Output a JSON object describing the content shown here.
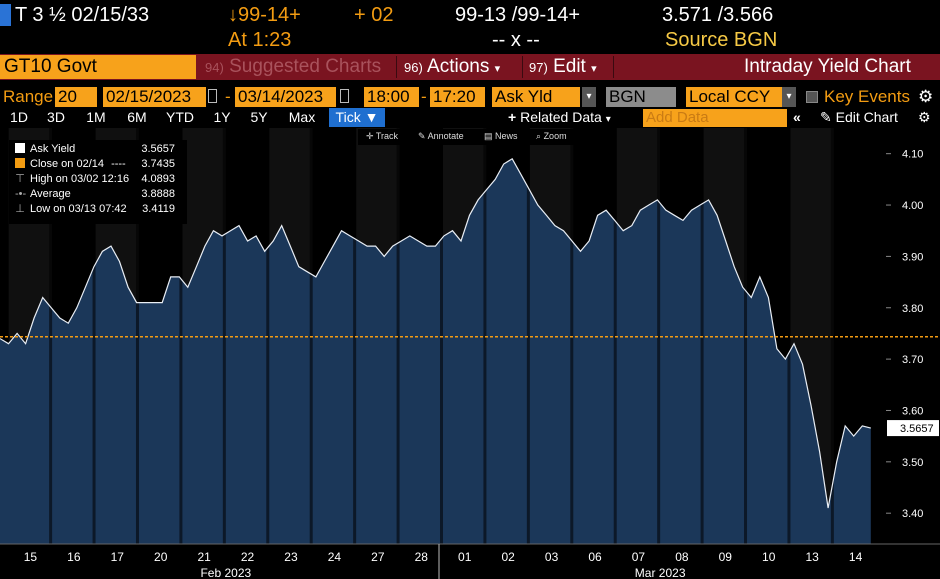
{
  "ticker": {
    "security": "T 3 ½ 02/15/33",
    "price_change": "↓99-14+",
    "net_change": "+ 02",
    "bid_ask": "99-13 /99-14+",
    "yields": "3.571 /3.566",
    "time": "At 1:23",
    "size": "-- x --",
    "source": "Source BGN"
  },
  "command": {
    "input": "GT10 Govt",
    "suggested_num": "94)",
    "suggested_label": "Suggested Charts",
    "actions_num": "96)",
    "actions_label": "Actions",
    "edit_num": "97)",
    "edit_label": "Edit",
    "title": "Intraday Yield Chart"
  },
  "range": {
    "label": "Range",
    "period": "20",
    "start": "02/15/2023",
    "dash": "-",
    "end": "03/14/2023",
    "time_start": "18:00",
    "time_end": "17:20",
    "field": "Ask Yld",
    "source": "BGN",
    "currency": "Local CCY",
    "key_events": "Key Events"
  },
  "toolbar": {
    "periods": [
      "1D",
      "3D",
      "1M",
      "6M",
      "YTD",
      "1Y",
      "5Y",
      "Max"
    ],
    "active": "Tick",
    "related": "Related Data",
    "add_data_placeholder": "Add Data",
    "edit_chart": "Edit Chart",
    "track": "Track",
    "annotate": "Annotate",
    "news": "News",
    "zoom": "Zoom"
  },
  "legend": {
    "ask_label": "Ask Yield",
    "ask_value": "3.5657",
    "close_label": "Close on 02/14",
    "close_dashes": "----",
    "close_value": "3.7435",
    "high_label": "High on 03/02 12:16",
    "high_value": "4.0893",
    "avg_label": "Average",
    "avg_value": "3.8888",
    "low_label": "Low on 03/13 07:42",
    "low_value": "3.4119"
  },
  "colors": {
    "accent": "#f7a21b",
    "series": "#1c3a5e",
    "close_line": "#f39c12",
    "active_tab": "#1f6fd0"
  },
  "chart_data": {
    "type": "area",
    "ylim": [
      3.34,
      4.15
    ],
    "yticks": [
      "4.10",
      "4.00",
      "3.90",
      "3.80",
      "3.70",
      "3.60",
      "3.50",
      "3.40"
    ],
    "ytick_values": [
      4.1,
      4.0,
      3.9,
      3.8,
      3.7,
      3.6,
      3.5,
      3.4
    ],
    "last_value": "3.5657",
    "reference_close": 3.7435,
    "days": [
      "15",
      "16",
      "17",
      "20",
      "21",
      "22",
      "23",
      "24",
      "27",
      "28",
      "01",
      "02",
      "03",
      "06",
      "07",
      "08",
      "09",
      "10",
      "13",
      "14"
    ],
    "month_labels": [
      "Feb 2023",
      "Mar 2023"
    ],
    "series": [
      {
        "values": [
          3.74,
          3.73,
          3.75,
          3.73,
          3.78,
          3.82,
          3.8,
          3.78,
          3.77,
          3.8,
          3.84,
          3.88,
          3.91,
          3.92,
          3.89,
          3.84,
          3.81,
          3.81,
          3.81,
          3.81,
          3.86,
          3.86,
          3.84,
          3.88,
          3.92,
          3.95,
          3.94,
          3.95,
          3.96,
          3.93,
          3.94,
          3.91,
          3.93,
          3.96,
          3.92,
          3.88,
          3.87,
          3.86,
          3.89,
          3.92,
          3.95,
          3.94,
          3.93,
          3.92,
          3.92,
          3.9,
          3.92,
          3.93,
          3.94,
          3.93,
          3.92,
          3.92,
          3.94,
          3.95,
          3.93,
          3.98,
          4.01,
          4.03,
          4.05,
          4.08,
          4.09,
          4.06,
          4.03,
          4.0,
          3.98,
          3.96,
          3.95,
          3.93,
          3.91,
          3.93,
          3.98,
          3.99,
          3.97,
          3.95,
          3.96,
          3.99,
          4.0,
          4.01,
          3.99,
          3.98,
          3.97,
          3.99,
          4.0,
          4.01,
          3.98,
          3.93,
          3.88,
          3.84,
          3.82,
          3.86,
          3.82,
          3.72,
          3.7,
          3.73,
          3.69,
          3.61,
          3.52,
          3.41,
          3.5,
          3.57,
          3.55,
          3.57,
          3.5657
        ]
      }
    ]
  }
}
